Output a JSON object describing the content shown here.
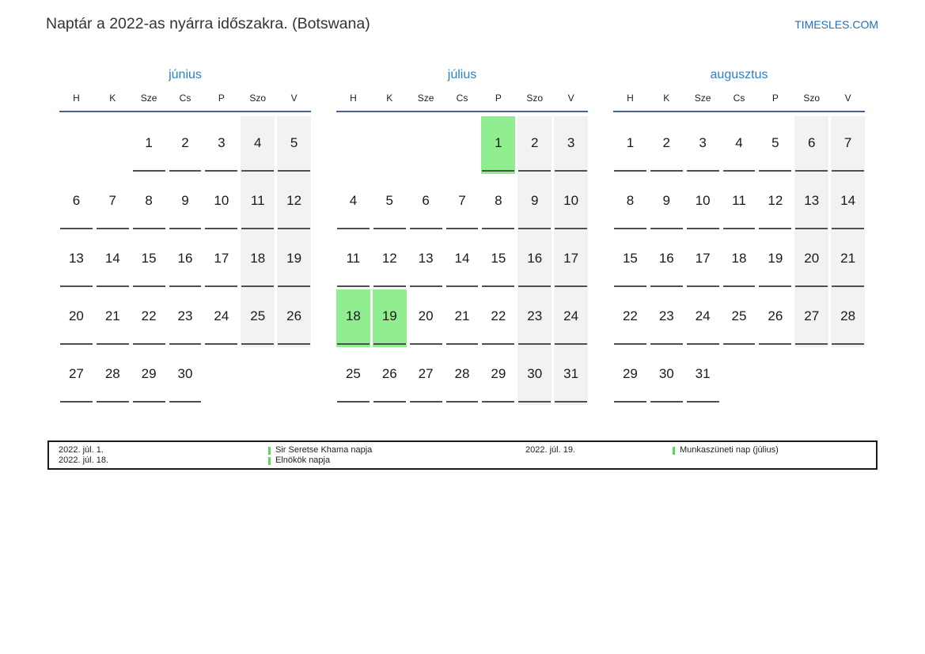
{
  "header": {
    "title": "Naptár a 2022-as nyárra időszakra. (Botswana)",
    "site_link": "TIMESLES.COM"
  },
  "calendar": {
    "weekday_headers": [
      "H",
      "K",
      "Sze",
      "Cs",
      "P",
      "Szo",
      "V"
    ],
    "months": [
      {
        "name": "június",
        "weeks": [
          [
            "",
            "",
            "1",
            "2",
            "3",
            "4",
            "5"
          ],
          [
            "6",
            "7",
            "8",
            "9",
            "10",
            "11",
            "12"
          ],
          [
            "13",
            "14",
            "15",
            "16",
            "17",
            "18",
            "19"
          ],
          [
            "20",
            "21",
            "22",
            "23",
            "24",
            "25",
            "26"
          ],
          [
            "27",
            "28",
            "29",
            "30",
            "",
            "",
            ""
          ]
        ],
        "holidays": []
      },
      {
        "name": "július",
        "weeks": [
          [
            "",
            "",
            "",
            "",
            "1",
            "2",
            "3"
          ],
          [
            "4",
            "5",
            "6",
            "7",
            "8",
            "9",
            "10"
          ],
          [
            "11",
            "12",
            "13",
            "14",
            "15",
            "16",
            "17"
          ],
          [
            "18",
            "19",
            "20",
            "21",
            "22",
            "23",
            "24"
          ],
          [
            "25",
            "26",
            "27",
            "28",
            "29",
            "30",
            "31"
          ]
        ],
        "holidays": [
          "1",
          "18",
          "19"
        ]
      },
      {
        "name": "augusztus",
        "weeks": [
          [
            "1",
            "2",
            "3",
            "4",
            "5",
            "6",
            "7"
          ],
          [
            "8",
            "9",
            "10",
            "11",
            "12",
            "13",
            "14"
          ],
          [
            "15",
            "16",
            "17",
            "18",
            "19",
            "20",
            "21"
          ],
          [
            "22",
            "23",
            "24",
            "25",
            "26",
            "27",
            "28"
          ],
          [
            "29",
            "30",
            "31",
            "",
            "",
            "",
            ""
          ]
        ],
        "holidays": []
      }
    ]
  },
  "legend": {
    "entries": [
      {
        "date": "2022. júl. 1.",
        "label": "Sir Seretse Khama napja"
      },
      {
        "date": "2022. júl. 18.",
        "label": "Elnökök napja"
      },
      {
        "date": "2022. júl. 19.",
        "label": "Munkaszüneti nap (július)"
      }
    ]
  },
  "colors": {
    "accent_blue": "#2e7fc2",
    "site_blue": "#1a6fc0",
    "header_rule_blue": "#3e6593",
    "holiday_green": "#90ee90",
    "legend_marker_green": "#5cd65c",
    "weekend_gray": "#f2f2f2",
    "day_underline_gray": "#4f4f4f",
    "text_dark": "#333333"
  }
}
